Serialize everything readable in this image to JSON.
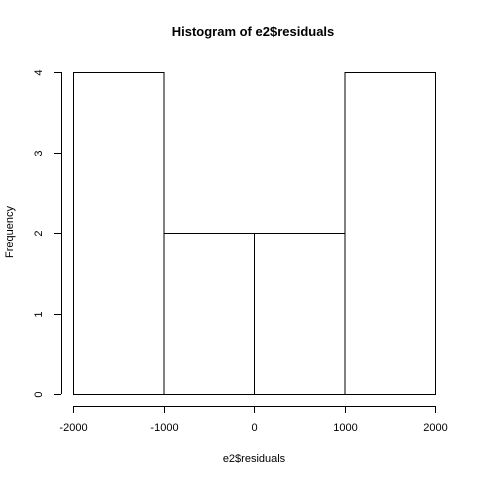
{
  "chart_data": {
    "type": "bar",
    "title": "Histogram of e2$residuals",
    "xlabel": "e2$residuals",
    "ylabel": "Frequency",
    "bins": [
      {
        "from": -2000,
        "to": -1000,
        "count": 4
      },
      {
        "from": -1000,
        "to": 0,
        "count": 2
      },
      {
        "from": 0,
        "to": 1000,
        "count": 2
      },
      {
        "from": 1000,
        "to": 2000,
        "count": 4
      }
    ],
    "xlim": [
      -2000,
      2000
    ],
    "ylim": [
      0,
      4
    ],
    "xticks": [
      -2000,
      -1000,
      0,
      1000,
      2000
    ],
    "yticks": [
      0,
      1,
      2,
      3,
      4
    ],
    "grid": false,
    "legend": "none"
  }
}
